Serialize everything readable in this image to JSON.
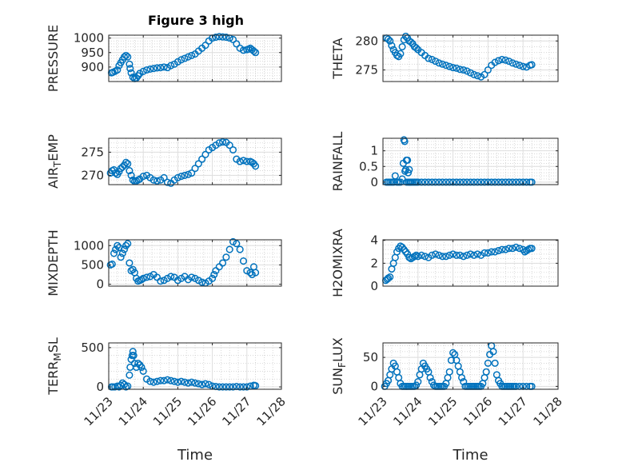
{
  "style": {
    "marker_color": "#0072BD",
    "grid_color": "#c8c8c8",
    "axis_color": "#262626"
  },
  "chart_data": [
    {
      "type": "scatter",
      "title": "Figure 3 high",
      "ylabel": "PRESSURE",
      "ylim": [
        850,
        1010
      ],
      "yticks": [
        "900",
        "950",
        "1000"
      ],
      "ytick_values": [
        900,
        950,
        1000
      ],
      "xlim": [
        0,
        5
      ],
      "xticks": [
        "11/23",
        "11/24",
        "11/25",
        "11/26",
        "11/27",
        "11/28"
      ],
      "xtick_labels_visible": false,
      "x": [
        0.08,
        0.12,
        0.18,
        0.25,
        0.3,
        0.35,
        0.4,
        0.45,
        0.5,
        0.55,
        0.6,
        0.62,
        0.65,
        0.7,
        0.75,
        0.8,
        0.85,
        0.9,
        1.0,
        1.1,
        1.2,
        1.3,
        1.4,
        1.5,
        1.6,
        1.7,
        1.8,
        1.9,
        2.0,
        2.1,
        2.2,
        2.3,
        2.4,
        2.5,
        2.6,
        2.7,
        2.8,
        2.9,
        3.0,
        3.1,
        3.2,
        3.3,
        3.4,
        3.5,
        3.6,
        3.7,
        3.8,
        3.9,
        4.0,
        4.05,
        4.1,
        4.15,
        4.2,
        4.25
      ],
      "values": [
        880,
        882,
        885,
        890,
        905,
        915,
        925,
        935,
        940,
        935,
        910,
        895,
        880,
        865,
        860,
        862,
        870,
        878,
        885,
        890,
        893,
        895,
        897,
        898,
        900,
        898,
        905,
        910,
        918,
        925,
        930,
        935,
        940,
        945,
        955,
        965,
        975,
        990,
        1000,
        1003,
        1005,
        1004,
        1003,
        1000,
        995,
        980,
        965,
        958,
        960,
        962,
        965,
        960,
        955,
        950
      ],
      "xlabel": ""
    },
    {
      "type": "scatter",
      "title": "",
      "ylabel": "THETA",
      "ylim": [
        273,
        281
      ],
      "yticks": [
        "275",
        "280"
      ],
      "ytick_values": [
        275,
        280
      ],
      "xlim": [
        0,
        5
      ],
      "xticks": [
        "11/23",
        "11/24",
        "11/25",
        "11/26",
        "11/27",
        "11/28"
      ],
      "xtick_labels_visible": false,
      "x": [
        0.1,
        0.15,
        0.2,
        0.25,
        0.3,
        0.35,
        0.4,
        0.45,
        0.5,
        0.55,
        0.6,
        0.65,
        0.7,
        0.75,
        0.8,
        0.85,
        0.9,
        0.95,
        1.0,
        1.1,
        1.2,
        1.3,
        1.4,
        1.5,
        1.6,
        1.7,
        1.8,
        1.9,
        2.0,
        2.1,
        2.2,
        2.3,
        2.4,
        2.5,
        2.6,
        2.7,
        2.8,
        2.9,
        3.0,
        3.1,
        3.2,
        3.3,
        3.4,
        3.5,
        3.6,
        3.7,
        3.8,
        3.9,
        4.0,
        4.1,
        4.2,
        4.25
      ],
      "values": [
        280.5,
        280.3,
        280.0,
        279.2,
        278.5,
        278.0,
        277.5,
        277.3,
        277.8,
        279.0,
        280.2,
        280.8,
        280.5,
        280.0,
        279.8,
        279.5,
        279.0,
        278.8,
        278.5,
        278.0,
        277.5,
        277.0,
        276.8,
        276.5,
        276.2,
        276.0,
        275.8,
        275.6,
        275.4,
        275.3,
        275.1,
        275.0,
        274.8,
        274.5,
        274.2,
        274.0,
        273.8,
        274.2,
        275.0,
        275.8,
        276.3,
        276.6,
        276.8,
        276.7,
        276.5,
        276.2,
        276.0,
        275.8,
        275.6,
        275.5,
        275.8,
        275.9
      ],
      "xlabel": ""
    },
    {
      "type": "scatter",
      "title": "",
      "ylabel": "AIR_TEMP",
      "ylim": [
        268,
        278
      ],
      "yticks": [
        "270",
        "275"
      ],
      "ytick_values": [
        270,
        275
      ],
      "xlim": [
        0,
        5
      ],
      "xticks": [
        "11/23",
        "11/24",
        "11/25",
        "11/26",
        "11/27",
        "11/28"
      ],
      "xtick_labels_visible": false,
      "x": [
        0.05,
        0.1,
        0.15,
        0.2,
        0.25,
        0.3,
        0.35,
        0.4,
        0.45,
        0.5,
        0.55,
        0.6,
        0.65,
        0.7,
        0.75,
        0.8,
        0.85,
        0.9,
        1.0,
        1.1,
        1.2,
        1.3,
        1.4,
        1.5,
        1.6,
        1.7,
        1.8,
        1.9,
        2.0,
        2.1,
        2.2,
        2.3,
        2.4,
        2.5,
        2.6,
        2.7,
        2.8,
        2.9,
        3.0,
        3.1,
        3.2,
        3.3,
        3.4,
        3.5,
        3.6,
        3.7,
        3.8,
        3.9,
        4.0,
        4.1,
        4.15,
        4.2,
        4.25
      ],
      "values": [
        270.5,
        271.0,
        271.2,
        270.5,
        270.2,
        270.8,
        271.5,
        271.8,
        272.2,
        272.8,
        272.5,
        271.0,
        270.0,
        269.0,
        268.7,
        268.8,
        269.0,
        269.2,
        269.8,
        270.0,
        269.5,
        269.0,
        268.8,
        269.0,
        269.5,
        268.5,
        268.3,
        269.0,
        269.5,
        269.8,
        270.0,
        270.2,
        270.5,
        271.5,
        272.5,
        273.5,
        274.5,
        275.5,
        276.0,
        276.5,
        277.0,
        277.2,
        277.1,
        276.5,
        275.5,
        273.5,
        273.0,
        273.2,
        273.0,
        273.0,
        272.8,
        272.5,
        272.0
      ],
      "xlabel": ""
    },
    {
      "type": "scatter",
      "title": "",
      "ylabel": "RAINFALL",
      "ylim": [
        -0.08,
        1.4
      ],
      "yticks": [
        "0",
        "0.5",
        "1"
      ],
      "ytick_values": [
        0,
        0.5,
        1
      ],
      "xlim": [
        0,
        5
      ],
      "xticks": [
        "11/23",
        "11/24",
        "11/25",
        "11/26",
        "11/27",
        "11/28"
      ],
      "xtick_labels_visible": false,
      "x": [
        0.1,
        0.15,
        0.2,
        0.25,
        0.3,
        0.35,
        0.4,
        0.45,
        0.5,
        0.55,
        0.58,
        0.6,
        0.62,
        0.63,
        0.65,
        0.67,
        0.68,
        0.7,
        0.72,
        0.73,
        0.75,
        0.77,
        0.8,
        0.85,
        0.9,
        0.95,
        1.0,
        1.1,
        1.2,
        1.3,
        1.4,
        1.5,
        1.6,
        1.7,
        1.8,
        1.9,
        2.0,
        2.1,
        2.2,
        2.3,
        2.4,
        2.5,
        2.6,
        2.7,
        2.8,
        2.9,
        3.0,
        3.1,
        3.2,
        3.3,
        3.4,
        3.5,
        3.6,
        3.7,
        3.8,
        3.9,
        4.0,
        4.1,
        4.2,
        4.25
      ],
      "values": [
        0,
        0,
        0,
        0,
        0,
        0.2,
        0,
        0,
        0,
        0.1,
        0.6,
        1.35,
        1.3,
        0.35,
        0.4,
        0.7,
        0,
        0.7,
        0.3,
        0,
        0.4,
        0,
        0,
        0,
        0,
        0,
        0,
        0,
        0,
        0,
        0,
        0,
        0,
        0,
        0,
        0,
        0,
        0,
        0,
        0,
        0,
        0,
        0,
        0,
        0,
        0,
        0,
        0,
        0,
        0,
        0,
        0,
        0,
        0,
        0,
        0,
        0,
        0,
        0,
        0
      ],
      "xlabel": ""
    },
    {
      "type": "scatter",
      "title": "",
      "ylabel": "MIXDEPTH",
      "ylim": [
        -50,
        1150
      ],
      "yticks": [
        "0",
        "500",
        "1000"
      ],
      "ytick_values": [
        0,
        500,
        1000
      ],
      "xlim": [
        0,
        5
      ],
      "xticks": [
        "11/23",
        "11/24",
        "11/25",
        "11/26",
        "11/27",
        "11/28"
      ],
      "xtick_labels_visible": false,
      "x": [
        0.05,
        0.1,
        0.15,
        0.2,
        0.25,
        0.3,
        0.35,
        0.4,
        0.45,
        0.5,
        0.55,
        0.6,
        0.65,
        0.7,
        0.75,
        0.8,
        0.85,
        0.9,
        0.95,
        1.0,
        1.1,
        1.2,
        1.3,
        1.4,
        1.5,
        1.6,
        1.7,
        1.8,
        1.9,
        2.0,
        2.1,
        2.2,
        2.3,
        2.4,
        2.5,
        2.6,
        2.7,
        2.8,
        2.9,
        3.0,
        3.05,
        3.1,
        3.2,
        3.3,
        3.4,
        3.5,
        3.6,
        3.7,
        3.8,
        3.9,
        4.0,
        4.1,
        4.15,
        4.2,
        4.25
      ],
      "values": [
        500,
        520,
        800,
        900,
        1000,
        950,
        700,
        800,
        900,
        1000,
        1050,
        550,
        350,
        380,
        300,
        150,
        80,
        100,
        120,
        150,
        180,
        200,
        250,
        180,
        80,
        100,
        150,
        200,
        180,
        100,
        150,
        200,
        120,
        180,
        150,
        100,
        50,
        30,
        80,
        150,
        250,
        350,
        450,
        550,
        700,
        900,
        1100,
        1050,
        900,
        600,
        350,
        300,
        250,
        450,
        300
      ],
      "xlabel": ""
    },
    {
      "type": "scatter",
      "title": "",
      "ylabel": "H2OMIXRA",
      "ylim": [
        0,
        4.05
      ],
      "yticks": [
        "0",
        "2",
        "4"
      ],
      "ytick_values": [
        0,
        2,
        4
      ],
      "xlim": [
        0,
        5
      ],
      "xticks": [
        "11/23",
        "11/24",
        "11/25",
        "11/26",
        "11/27",
        "11/28"
      ],
      "xtick_labels_visible": false,
      "x": [
        0.08,
        0.12,
        0.15,
        0.2,
        0.25,
        0.3,
        0.35,
        0.4,
        0.45,
        0.5,
        0.55,
        0.6,
        0.65,
        0.7,
        0.75,
        0.8,
        0.85,
        0.9,
        0.95,
        1.0,
        1.1,
        1.2,
        1.3,
        1.4,
        1.5,
        1.6,
        1.7,
        1.8,
        1.9,
        2.0,
        2.1,
        2.2,
        2.3,
        2.4,
        2.5,
        2.6,
        2.7,
        2.8,
        2.9,
        3.0,
        3.1,
        3.2,
        3.3,
        3.4,
        3.5,
        3.6,
        3.7,
        3.8,
        3.9,
        4.0,
        4.05,
        4.1,
        4.15,
        4.2,
        4.25
      ],
      "values": [
        0.5,
        0.6,
        0.7,
        0.8,
        1.5,
        2.0,
        2.5,
        3.0,
        3.3,
        3.5,
        3.4,
        3.2,
        3.0,
        2.8,
        2.5,
        2.4,
        2.5,
        2.6,
        2.7,
        2.6,
        2.7,
        2.6,
        2.5,
        2.7,
        2.8,
        2.7,
        2.6,
        2.6,
        2.7,
        2.8,
        2.7,
        2.7,
        2.6,
        2.7,
        2.8,
        2.7,
        2.8,
        2.7,
        2.9,
        2.9,
        3.0,
        3.0,
        3.1,
        3.2,
        3.2,
        3.3,
        3.3,
        3.4,
        3.3,
        3.2,
        3.0,
        3.1,
        3.2,
        3.3,
        3.3
      ],
      "xlabel": ""
    },
    {
      "type": "scatter",
      "title": "",
      "ylabel": "TERR_MSL",
      "ylim": [
        -30,
        560
      ],
      "yticks": [
        "0",
        "500"
      ],
      "ytick_values": [
        0,
        500
      ],
      "xlim": [
        0,
        5
      ],
      "xticks": [
        "11/23",
        "11/24",
        "11/25",
        "11/26",
        "11/27",
        "11/28"
      ],
      "xtick_labels_visible": true,
      "x": [
        0.08,
        0.12,
        0.18,
        0.25,
        0.3,
        0.35,
        0.4,
        0.45,
        0.5,
        0.55,
        0.6,
        0.62,
        0.65,
        0.68,
        0.7,
        0.72,
        0.75,
        0.8,
        0.85,
        0.9,
        0.95,
        1.0,
        1.1,
        1.2,
        1.3,
        1.4,
        1.5,
        1.6,
        1.7,
        1.8,
        1.9,
        2.0,
        2.1,
        2.2,
        2.3,
        2.4,
        2.5,
        2.6,
        2.7,
        2.8,
        2.9,
        3.0,
        3.1,
        3.2,
        3.3,
        3.4,
        3.5,
        3.6,
        3.7,
        3.8,
        3.9,
        4.0,
        4.1,
        4.2,
        4.25
      ],
      "values": [
        0,
        0,
        0,
        10,
        0,
        20,
        50,
        30,
        0,
        10,
        150,
        250,
        350,
        400,
        450,
        400,
        300,
        250,
        300,
        280,
        250,
        200,
        100,
        70,
        60,
        70,
        80,
        80,
        90,
        80,
        70,
        60,
        70,
        60,
        50,
        60,
        50,
        40,
        30,
        40,
        30,
        10,
        5,
        0,
        0,
        0,
        0,
        0,
        5,
        0,
        0,
        0,
        10,
        20,
        15
      ],
      "xlabel": "Time"
    },
    {
      "type": "scatter",
      "title": "",
      "ylabel": "SUN_FLUX",
      "ylim": [
        -5,
        75
      ],
      "yticks": [
        "0",
        "50"
      ],
      "ytick_values": [
        0,
        50
      ],
      "xlim": [
        0,
        5
      ],
      "xticks": [
        "11/23",
        "11/24",
        "11/25",
        "11/26",
        "11/27",
        "11/28"
      ],
      "xtick_labels_visible": true,
      "x": [
        0.05,
        0.1,
        0.15,
        0.2,
        0.25,
        0.3,
        0.35,
        0.4,
        0.45,
        0.5,
        0.55,
        0.6,
        0.65,
        0.7,
        0.75,
        0.8,
        0.85,
        0.9,
        0.95,
        1.0,
        1.05,
        1.1,
        1.15,
        1.2,
        1.25,
        1.3,
        1.35,
        1.4,
        1.45,
        1.5,
        1.55,
        1.6,
        1.65,
        1.7,
        1.75,
        1.8,
        1.85,
        1.9,
        1.95,
        2.0,
        2.05,
        2.1,
        2.15,
        2.2,
        2.25,
        2.3,
        2.35,
        2.4,
        2.45,
        2.5,
        2.55,
        2.6,
        2.65,
        2.7,
        2.75,
        2.8,
        2.85,
        2.9,
        2.95,
        3.0,
        3.05,
        3.1,
        3.15,
        3.2,
        3.25,
        3.3,
        3.35,
        3.4,
        3.45,
        3.5,
        3.55,
        3.6,
        3.65,
        3.7,
        3.75,
        3.8,
        3.9,
        4.0,
        4.1,
        4.2,
        4.25
      ],
      "values": [
        0,
        5,
        10,
        20,
        30,
        40,
        35,
        25,
        15,
        5,
        0,
        0,
        0,
        0,
        0,
        0,
        0,
        0,
        2,
        8,
        20,
        30,
        40,
        35,
        30,
        25,
        15,
        8,
        2,
        0,
        0,
        0,
        0,
        0,
        0,
        5,
        15,
        25,
        45,
        58,
        55,
        45,
        35,
        25,
        15,
        8,
        0,
        0,
        0,
        0,
        0,
        0,
        0,
        0,
        0,
        0,
        5,
        15,
        25,
        40,
        55,
        70,
        60,
        40,
        20,
        10,
        5,
        0,
        0,
        0,
        0,
        0,
        0,
        0,
        0,
        0,
        0,
        0,
        0,
        0,
        0
      ],
      "xlabel": "Time"
    }
  ]
}
